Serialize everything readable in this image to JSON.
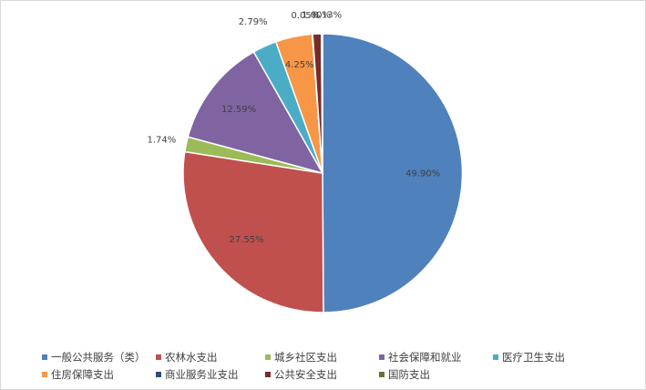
{
  "chart_data": {
    "type": "pie",
    "title": "",
    "categories": [
      "一般公共服务（类）",
      "农林水支出",
      "城乡社区支出",
      "社会保障和就业",
      "医疗卫生支出",
      "住房保障支出",
      "商业服务业支出",
      "公共安全支出",
      "国防支出"
    ],
    "values": [
      49.9,
      27.55,
      1.74,
      12.59,
      2.79,
      4.25,
      0.05,
      1.0,
      0.13
    ],
    "labels": [
      "49.90%",
      "27.55%",
      "1.74%",
      "12.59%",
      "2.79%",
      "4.25%",
      "0.05%",
      "1.00%",
      "0.13%"
    ],
    "colors": [
      "#4f81bd",
      "#c0504d",
      "#9bbb59",
      "#8064a2",
      "#4bacc6",
      "#f79646",
      "#2c4d75",
      "#772c2a",
      "#5f7530"
    ],
    "legend_position": "bottom"
  }
}
